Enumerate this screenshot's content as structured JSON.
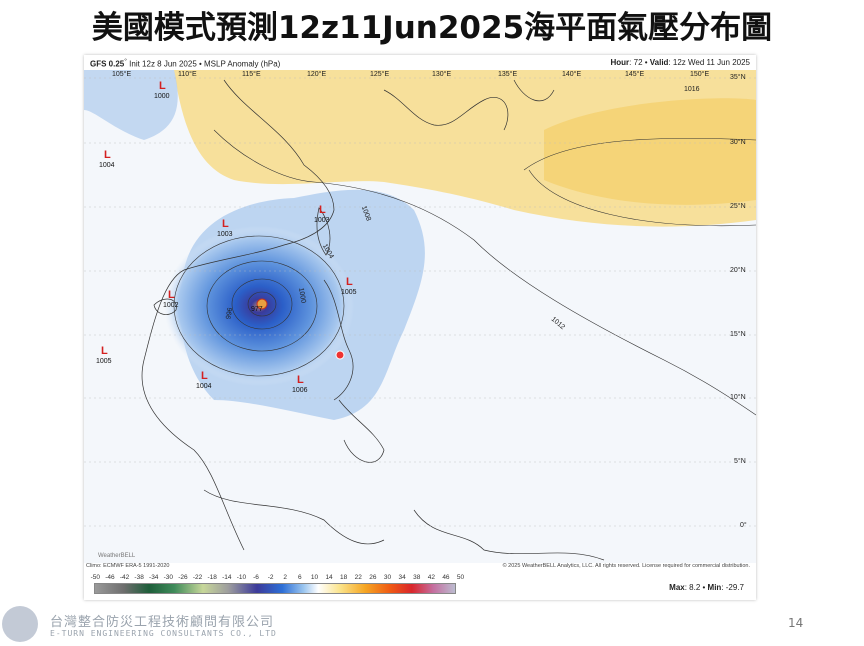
{
  "slide": {
    "title": "美國模式預測12z11Jun2025海平面氣壓分布圖",
    "page_number": "14"
  },
  "map": {
    "model": "GFS 0.25",
    "degree": "°",
    "init": "Init 12z 8 Jun 2025 • MSLP Anomaly (hPa)",
    "hour_label": "Hour",
    "hour": ": 72 • ",
    "valid_label": "Valid",
    "valid": ": 12z Wed 11 Jun 2025",
    "lon_labels": [
      "105°E",
      "110°E",
      "115°E",
      "120°E",
      "125°E",
      "130°E",
      "135°E",
      "140°E",
      "145°E",
      "150°E"
    ],
    "lat_labels": [
      "35°N",
      "30°N",
      "25°N",
      "20°N",
      "15°N",
      "10°N",
      "5°N",
      "0°"
    ],
    "lows": [
      "1000",
      "1004",
      "1003",
      "1003",
      "1002",
      "1005",
      "1005",
      "1004",
      "1006",
      "977"
    ],
    "low_symbol": "L",
    "contours": [
      "1016",
      "1012",
      "1008",
      "1004",
      "1000",
      "996"
    ],
    "climo": "Climo: ECMWF ERA-5 1991-2020",
    "copyright": "© 2025 WeatherBELL Analytics, LLC. All rights reserved. License required for commercial distribution.",
    "watermark": "WeatherBELL",
    "colorbar_ticks": [
      "-50",
      "-46",
      "-42",
      "-38",
      "-34",
      "-30",
      "-26",
      "-22",
      "-18",
      "-14",
      "-10",
      "-6",
      "-2",
      "2",
      "6",
      "10",
      "14",
      "18",
      "22",
      "26",
      "30",
      "34",
      "38",
      "42",
      "46",
      "50"
    ],
    "max_label": "Max",
    "max": ": 8.2 • ",
    "min_label": "Min",
    "min": ": -29.7"
  },
  "company": {
    "name_zh": "台灣整合防災工程技術顧問有限公司",
    "name_en": "E-TURN ENGINEERING CONSULTANTS CO., LTD"
  }
}
